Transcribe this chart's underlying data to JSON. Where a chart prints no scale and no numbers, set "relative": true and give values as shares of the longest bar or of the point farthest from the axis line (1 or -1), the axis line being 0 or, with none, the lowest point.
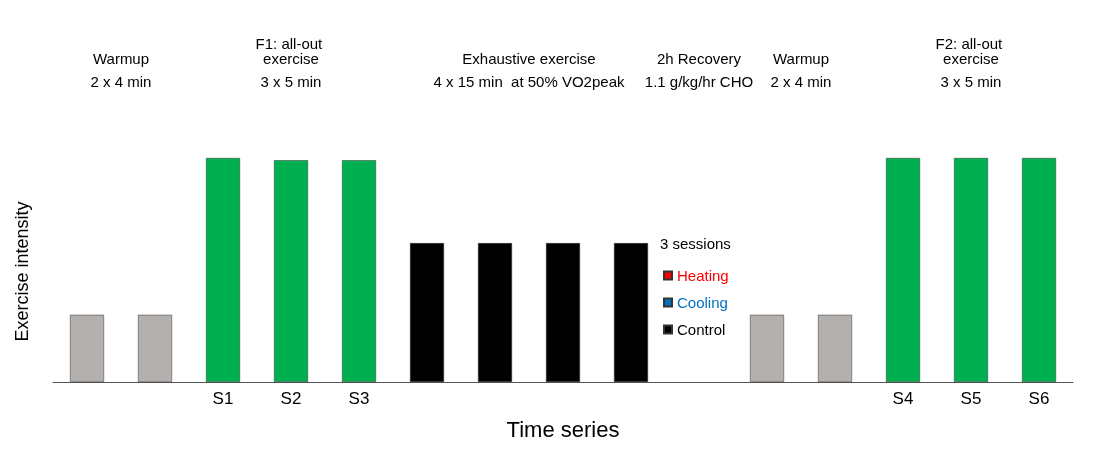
{
  "chart_data": {
    "type": "bar",
    "relative": true,
    "xlabel": "Time series",
    "ylabel": "Exercise intensity",
    "categories": [
      null,
      null,
      "S1",
      "S2",
      "S3",
      null,
      null,
      null,
      null,
      null,
      null,
      null,
      "S4",
      "S5",
      "S6"
    ],
    "series": [
      {
        "values": [
          0.3,
          0.3,
          1,
          0.99,
          0.99,
          0.62,
          0.62,
          0.62,
          0.62,
          null,
          0.3,
          0.3,
          1,
          1,
          1
        ],
        "colors": [
          "#b3b0ae",
          "#b3b0ae",
          "#00b050",
          "#00b050",
          "#00b050",
          "#000000",
          "#000000",
          "#000000",
          "#000000",
          null,
          "#b3b0ae",
          "#b3b0ae",
          "#00b050",
          "#00b050",
          "#00b050"
        ]
      },
      {
        "name": "Heating",
        "color": "#ff0000",
        "values": [
          null,
          null,
          null,
          null,
          null,
          null,
          null,
          null,
          null,
          null,
          null,
          null,
          null,
          null,
          null
        ]
      },
      {
        "name": "Cooling",
        "color": "#0070c0",
        "values": [
          null,
          null,
          null,
          null,
          null,
          null,
          null,
          null,
          null,
          null,
          null,
          null,
          null,
          null,
          null
        ]
      },
      {
        "name": "Control",
        "color": "#000000",
        "values": [
          null,
          null,
          null,
          null,
          null,
          null,
          null,
          null,
          null,
          null,
          null,
          null,
          null,
          null,
          null
        ]
      }
    ],
    "legend_title": "3 sessions",
    "legend": "center",
    "annotations": [
      "Warmup",
      "2 x 4 min",
      "F1: all-out exercise",
      "3 x 5 min",
      "Exhaustive exercise",
      "4 x 15 min  at 50% VO2peak",
      "2h Recovery",
      "1.1 g/kg/hr CHO",
      "Warmup",
      "2 x 4 min",
      "F2: all-out exercise",
      "3 x 5 min"
    ]
  }
}
